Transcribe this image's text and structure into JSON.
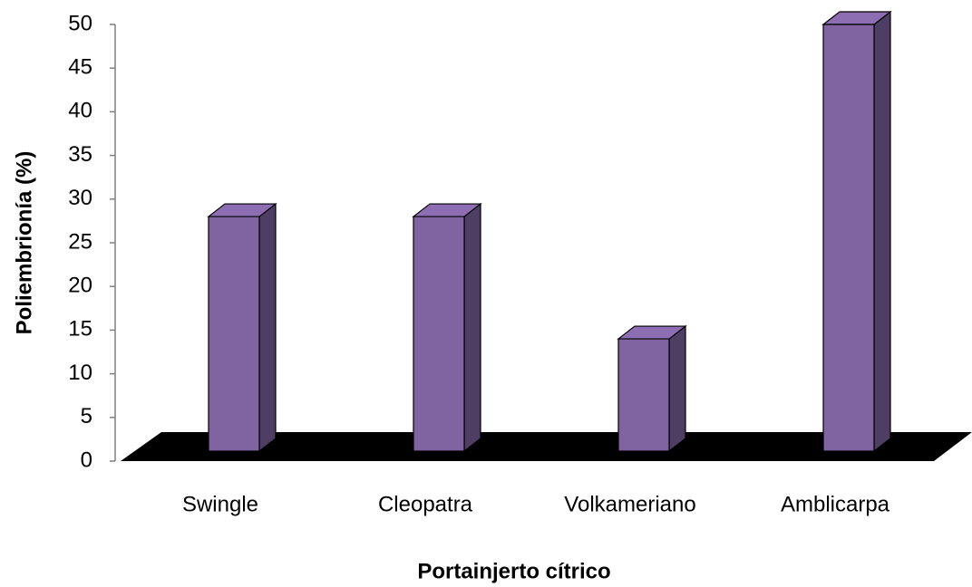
{
  "chart_data": {
    "type": "bar3d",
    "xlabel": "Portainjerto cítrico",
    "ylabel": "Poliembrionía (%)",
    "categories": [
      "Swingle",
      "Cleopatra",
      "Volkameriano",
      "Amblicarpa"
    ],
    "values": [
      28,
      28,
      14,
      50
    ],
    "color": "#8064a2",
    "ylim": [
      0,
      50
    ],
    "yticks": [
      0,
      5,
      10,
      15,
      20,
      25,
      30,
      35,
      40,
      45,
      50
    ],
    "grid": false
  }
}
